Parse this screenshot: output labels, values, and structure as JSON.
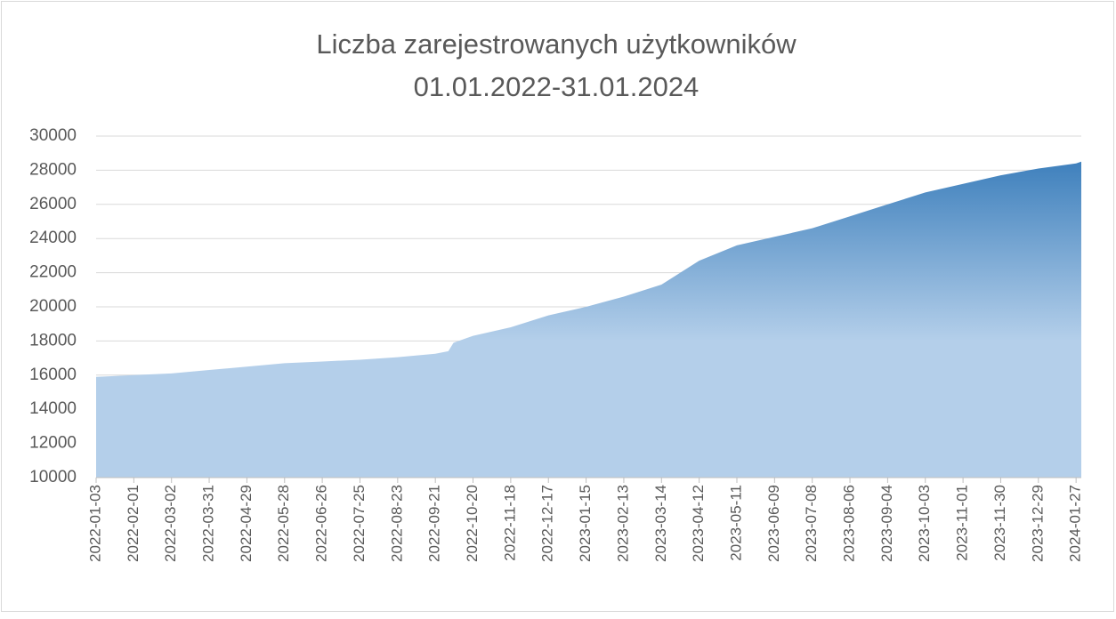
{
  "chart_data": {
    "type": "area",
    "title": [
      "Liczba zarejestrowanych użytkowników",
      "01.01.2022-31.01.2024"
    ],
    "x": [
      "2022-01-03",
      "2022-02-01",
      "2022-03-02",
      "2022-03-31",
      "2022-04-29",
      "2022-05-28",
      "2022-06-26",
      "2022-07-25",
      "2022-08-23",
      "2022-09-21",
      "2022-10-01",
      "2022-10-05",
      "2022-10-20",
      "2022-11-18",
      "2022-12-17",
      "2023-01-15",
      "2023-02-13",
      "2023-03-14",
      "2023-04-12",
      "2023-05-11",
      "2023-06-09",
      "2023-07-08",
      "2023-08-06",
      "2023-09-04",
      "2023-10-03",
      "2023-11-01",
      "2023-11-30",
      "2023-12-29",
      "2024-01-27",
      "2024-01-31"
    ],
    "values": [
      15900,
      16000,
      16100,
      16300,
      16500,
      16700,
      16800,
      16900,
      17050,
      17250,
      17400,
      17900,
      18300,
      18800,
      19500,
      20000,
      20600,
      21300,
      22700,
      23600,
      24100,
      24600,
      25300,
      26000,
      26700,
      27200,
      27700,
      28100,
      28400,
      28500
    ],
    "color": "#2e75b6",
    "color_light": "#b4cfea",
    "xlim": [
      "2022-01-03",
      "2024-01-31"
    ],
    "xticks": [
      "2022-01-03",
      "2022-02-01",
      "2022-03-02",
      "2022-03-31",
      "2022-04-29",
      "2022-05-28",
      "2022-06-26",
      "2022-07-25",
      "2022-08-23",
      "2022-09-21",
      "2022-10-20",
      "2022-11-18",
      "2022-12-17",
      "2023-01-15",
      "2023-02-13",
      "2023-03-14",
      "2023-04-12",
      "2023-05-11",
      "2023-06-09",
      "2023-07-08",
      "2023-08-06",
      "2023-09-04",
      "2023-10-03",
      "2023-11-01",
      "2023-11-30",
      "2023-12-29",
      "2024-01-27"
    ],
    "ylim": [
      10000,
      30000
    ],
    "yticks": [
      10000,
      12000,
      14000,
      16000,
      18000,
      20000,
      22000,
      24000,
      26000,
      28000,
      30000
    ],
    "grid": true
  }
}
